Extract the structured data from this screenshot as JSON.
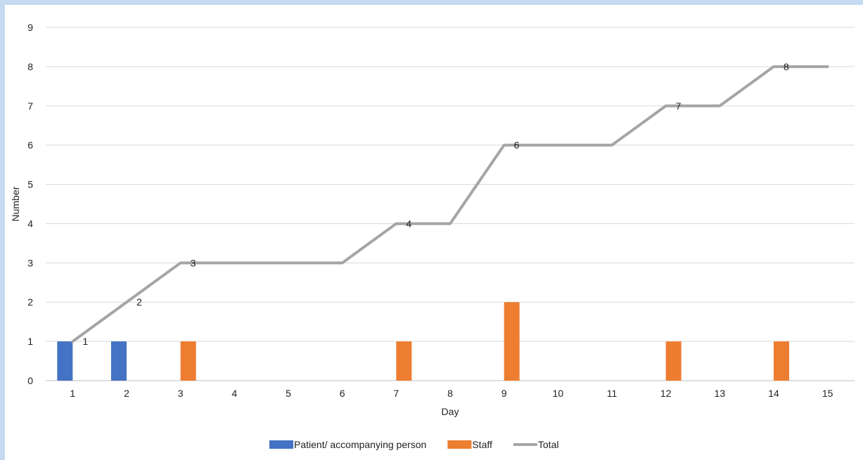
{
  "chart_data": {
    "type": "bar",
    "categories": [
      "1",
      "2",
      "3",
      "4",
      "5",
      "6",
      "7",
      "8",
      "9",
      "10",
      "11",
      "12",
      "13",
      "14",
      "15"
    ],
    "xlabel": "Day",
    "ylabel": "Number",
    "ylim": [
      0,
      9
    ],
    "yticks": [
      "0",
      "1",
      "2",
      "3",
      "4",
      "5",
      "6",
      "7",
      "8",
      "9"
    ],
    "grid": true,
    "legend_position": "bottom",
    "series": [
      {
        "name": "Patient/ accompanying person",
        "kind": "bar",
        "color": "#4472c4",
        "values": [
          1,
          1,
          0,
          0,
          0,
          0,
          0,
          0,
          0,
          0,
          0,
          0,
          0,
          0,
          0
        ]
      },
      {
        "name": "Staff",
        "kind": "bar",
        "color": "#ed7d31",
        "values": [
          0,
          0,
          1,
          0,
          0,
          0,
          1,
          0,
          2,
          0,
          0,
          1,
          0,
          1,
          0
        ]
      },
      {
        "name": "Total",
        "kind": "line",
        "color": "#a5a5a5",
        "values": [
          1,
          2,
          3,
          3,
          3,
          3,
          4,
          4,
          6,
          6,
          6,
          7,
          7,
          8,
          8
        ]
      }
    ],
    "data_labels": [
      {
        "day": "1",
        "text": "1"
      },
      {
        "day": "2",
        "text": "2"
      },
      {
        "day": "3",
        "text": "3"
      },
      {
        "day": "7",
        "text": "4"
      },
      {
        "day": "9",
        "text": "6"
      },
      {
        "day": "12",
        "text": "7"
      },
      {
        "day": "14",
        "text": "8"
      }
    ]
  }
}
